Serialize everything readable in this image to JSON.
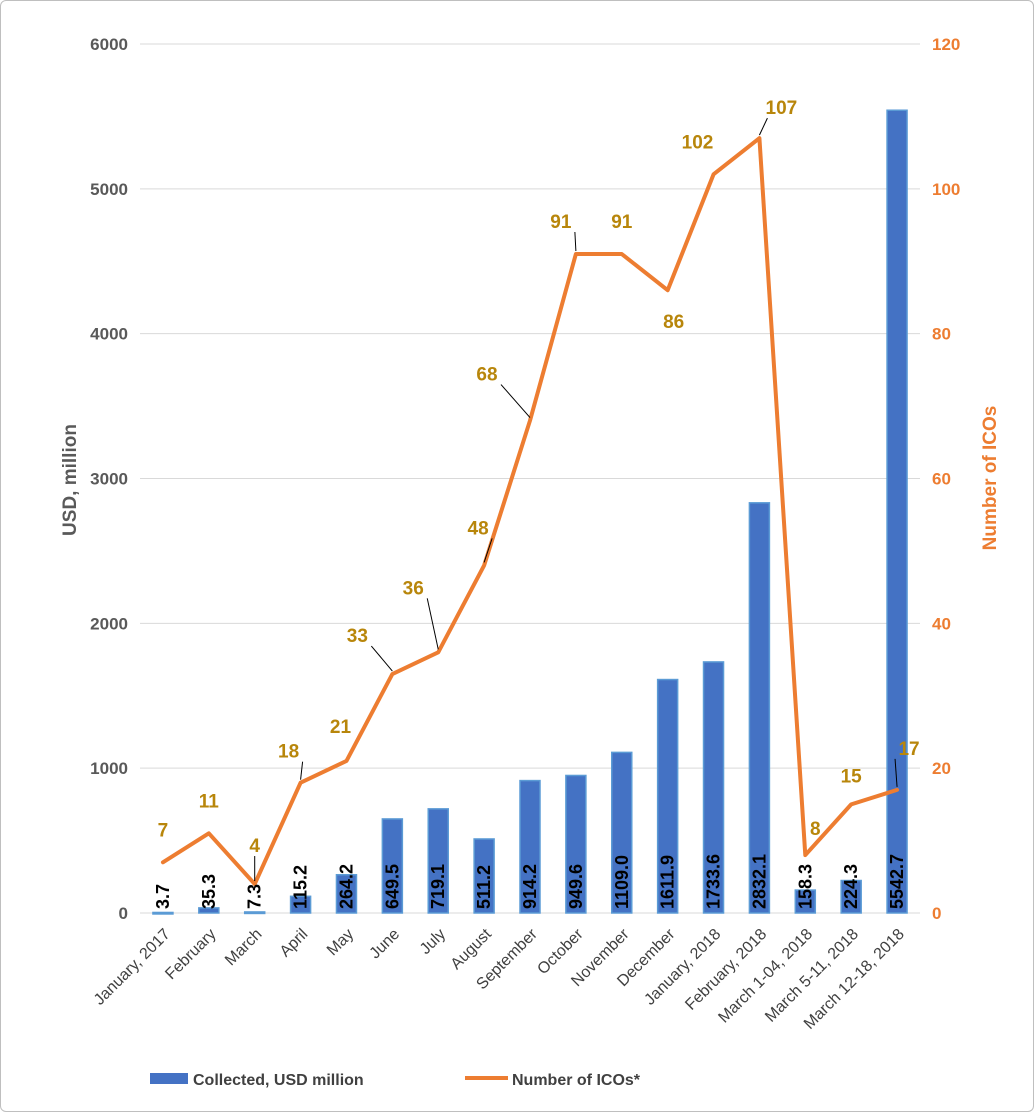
{
  "chart_data": {
    "type": "bar",
    "categories": [
      "January, 2017",
      "February",
      "March",
      "April",
      "May",
      "June",
      "July",
      "August",
      "September",
      "October",
      "November",
      "December",
      "January, 2018",
      "February, 2018",
      "March 1-04, 2018",
      "March 5-11, 2018",
      "March 12-18, 2018"
    ],
    "series": [
      {
        "name": "Collected, USD million",
        "type": "bar",
        "axis": "left",
        "color": "#4472c4",
        "values": [
          3.7,
          35.3,
          7.3,
          115.2,
          264.2,
          649.5,
          719.1,
          511.2,
          914.2,
          949.6,
          1109.0,
          1611.9,
          1733.6,
          2832.1,
          158.3,
          224.3,
          5542.7
        ],
        "labels": [
          "3.7",
          "35.3",
          "7.3",
          "115.2",
          "264.2",
          "649.5",
          "719.1",
          "511.2",
          "914.2",
          "949.6",
          "1109.0",
          "1611.9",
          "1733.6",
          "2832.1",
          "158.3",
          "224.3",
          "5542.7"
        ]
      },
      {
        "name": "Number of ICOs*",
        "type": "line",
        "axis": "right",
        "color": "#ed7d31",
        "values": [
          7,
          11,
          4,
          18,
          21,
          33,
          36,
          48,
          68,
          91,
          91,
          86,
          102,
          107,
          8,
          15,
          17
        ]
      }
    ],
    "ylabel": "USD, million",
    "y2label": "Number of ICOs",
    "ylim": [
      0,
      6000
    ],
    "y2lim": [
      0,
      120
    ],
    "yticks": [
      0,
      1000,
      2000,
      3000,
      4000,
      5000,
      6000
    ],
    "y2ticks": [
      0,
      20,
      40,
      60,
      80,
      100,
      120
    ],
    "grid": true,
    "legend": "bottom"
  }
}
